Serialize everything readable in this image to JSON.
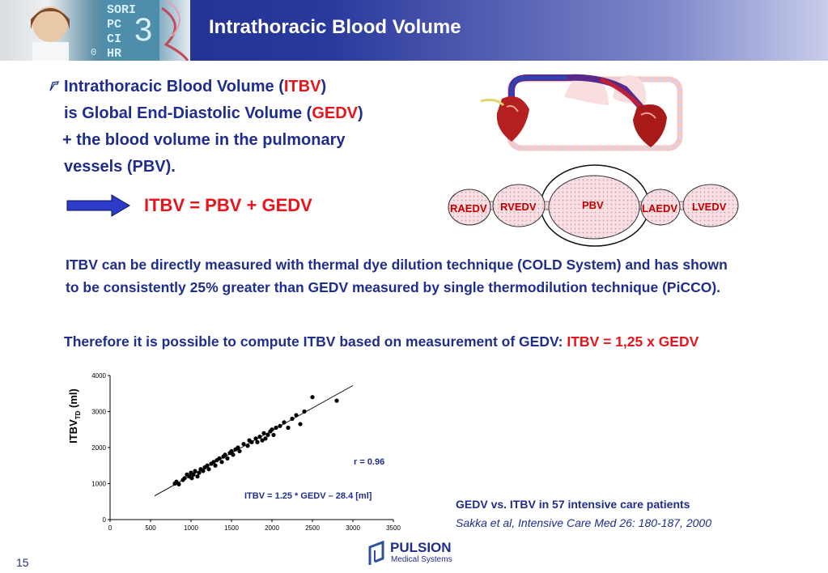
{
  "header": {
    "title": "Intrathoracic Blood Volume",
    "monitor_labels": [
      "SORI",
      "PC",
      "CI",
      "HR"
    ],
    "monitor_digit": "3",
    "monitor_zero": "0"
  },
  "bullet": {
    "line1_a": "Intrathoracic Blood Volume (",
    "line1_red": "ITBV",
    "line1_b": ")",
    "line2_a": "is Global End-Diastolic Volume (",
    "line2_red": "GEDV",
    "line2_b": ")",
    "line3": "+ the blood volume in the pulmonary",
    "line4": "vessels (PBV)."
  },
  "formula": "ITBV = PBV + GEDV",
  "diagram_labels": {
    "raedv": "RAEDV",
    "rvedv": "RVEDV",
    "pbv": "PBV",
    "laedv": "LAEDV",
    "lvedv": "LVEDV"
  },
  "paragraph": {
    "line1": "ITBV can be directly measured with thermal dye dilution technique (COLD System) and has shown",
    "line2": "to be consistently 25% greater than GEDV measured by single thermodilution technique (PiCCO)."
  },
  "therefore": {
    "text": "Therefore it is possible to compute ITBV based on measurement of GEDV: ",
    "red": "ITBV = 1,25 x GEDV"
  },
  "chart_data": {
    "type": "scatter",
    "ylabel_main": "ITBV",
    "ylabel_sub": "TD",
    "ylabel_unit": " (ml)",
    "xlim": [
      0,
      3500
    ],
    "ylim": [
      0,
      4000
    ],
    "x_ticks": [
      "0",
      "500",
      "1000",
      "1500",
      "2000",
      "2500",
      "3000",
      "3500"
    ],
    "y_ticks": [
      "0",
      "1000",
      "2000",
      "3000",
      "4000"
    ],
    "r_label": "r = 0.96",
    "equation": "ITBV = 1.25 * GEDV – 28.4 [ml]",
    "regression": {
      "slope": 1.25,
      "intercept": -28.4
    },
    "points": [
      [
        800,
        1000
      ],
      [
        820,
        1050
      ],
      [
        850,
        980
      ],
      [
        900,
        1100
      ],
      [
        920,
        1150
      ],
      [
        950,
        1250
      ],
      [
        980,
        1200
      ],
      [
        1000,
        1300
      ],
      [
        1010,
        1150
      ],
      [
        1030,
        1250
      ],
      [
        1050,
        1350
      ],
      [
        1080,
        1200
      ],
      [
        1100,
        1300
      ],
      [
        1120,
        1400
      ],
      [
        1150,
        1350
      ],
      [
        1170,
        1450
      ],
      [
        1200,
        1500
      ],
      [
        1220,
        1400
      ],
      [
        1250,
        1550
      ],
      [
        1280,
        1600
      ],
      [
        1300,
        1500
      ],
      [
        1320,
        1650
      ],
      [
        1350,
        1700
      ],
      [
        1380,
        1600
      ],
      [
        1400,
        1750
      ],
      [
        1420,
        1800
      ],
      [
        1450,
        1700
      ],
      [
        1480,
        1850
      ],
      [
        1500,
        1900
      ],
      [
        1520,
        1800
      ],
      [
        1550,
        1950
      ],
      [
        1580,
        2000
      ],
      [
        1600,
        1900
      ],
      [
        1650,
        2100
      ],
      [
        1700,
        2050
      ],
      [
        1720,
        2200
      ],
      [
        1750,
        2150
      ],
      [
        1800,
        2250
      ],
      [
        1820,
        2150
      ],
      [
        1850,
        2300
      ],
      [
        1880,
        2200
      ],
      [
        1900,
        2400
      ],
      [
        1920,
        2250
      ],
      [
        1950,
        2350
      ],
      [
        1980,
        2450
      ],
      [
        2000,
        2500
      ],
      [
        2020,
        2350
      ],
      [
        2050,
        2550
      ],
      [
        2100,
        2600
      ],
      [
        2150,
        2700
      ],
      [
        2200,
        2550
      ],
      [
        2250,
        2800
      ],
      [
        2300,
        2900
      ],
      [
        2350,
        2650
      ],
      [
        2400,
        3000
      ],
      [
        2500,
        3400
      ],
      [
        2800,
        3300
      ]
    ]
  },
  "caption": {
    "line1": "GEDV vs. ITBV in 57 intensive care patients",
    "line2": "Sakka et al, Intensive Care Med 26: 180-187, 2000"
  },
  "logo": {
    "name": "PULSION",
    "sub": "Medical Systems"
  },
  "page_number": "15"
}
